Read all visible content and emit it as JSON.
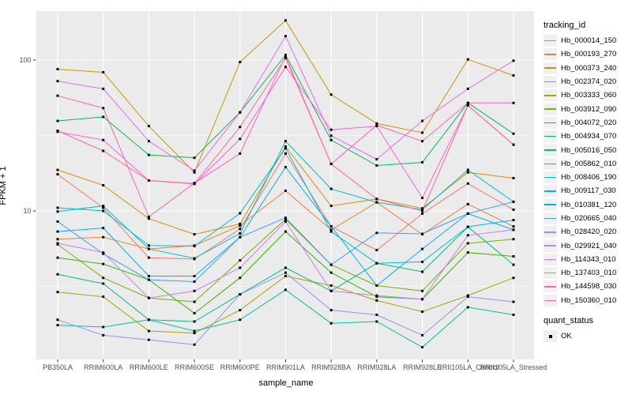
{
  "figure": {
    "background": "#FFFFFF",
    "panel_background": "#EBEBEB",
    "gridline_color": "#FFFFFF",
    "tick_color": "#333333",
    "tick_label_color": "#4D4D4D",
    "point_color": "#000000"
  },
  "chart_data": {
    "type": "line",
    "title": "",
    "xlabel": "sample_name",
    "ylabel": "FPKM + 1",
    "y_scale": "log10",
    "grid": true,
    "legend_position": "right",
    "ylim": [
      1.04,
      209
    ],
    "y_tick_labels": [
      "100",
      "10"
    ],
    "y_tick_values": [
      100,
      10
    ],
    "y_minor_values": [
      31.62,
      3.162
    ],
    "point_shape": "square",
    "categories": [
      "PB350LA",
      "RRIM600LA",
      "RRIM600LE",
      "RRIM600SE",
      "RRIM600PE",
      "RRIM901LA",
      "RRIM928BA",
      "RRIM928LA",
      "RRIM928LE",
      "RRII105LA_Control",
      "RRII105LA_Stressed"
    ],
    "series": [
      {
        "name": "Hb_000014_150",
        "color": "#F8766D",
        "values": [
          17.5,
          10.5,
          4.9,
          4.8,
          7.6,
          24,
          7.9,
          5.5,
          9.6,
          15.2,
          10.2
        ]
      },
      {
        "name": "Hb_000193_270",
        "color": "#EA8331",
        "values": [
          6.5,
          6.7,
          5.6,
          5.9,
          8.0,
          13.6,
          7.5,
          11.4,
          7.0,
          11.1,
          7.9
        ]
      },
      {
        "name": "Hb_000373_240",
        "color": "#D89000",
        "values": [
          18.7,
          14.8,
          8.9,
          7.0,
          8.2,
          26.7,
          10.8,
          12.0,
          10.4,
          18.0,
          16.5
        ]
      },
      {
        "name": "Hb_002374_020",
        "color": "#C09B00",
        "values": [
          87,
          83,
          36.5,
          18,
          97,
          183,
          59,
          38,
          33,
          101,
          79
        ]
      },
      {
        "name": "Hb_003333_060",
        "color": "#A3A500",
        "values": [
          2.9,
          2.7,
          1.6,
          1.55,
          2.2,
          3.7,
          3.2,
          2.55,
          2.15,
          2.75,
          3.6
        ]
      },
      {
        "name": "Hb_003912_090",
        "color": "#7CAE00",
        "values": [
          6.0,
          3.6,
          2.65,
          2.5,
          4.7,
          8.8,
          4.4,
          3.2,
          2.95,
          6.1,
          6.5
        ]
      },
      {
        "name": "Hb_004072_020",
        "color": "#39B600",
        "values": [
          4.9,
          4.45,
          3.5,
          2.1,
          3.6,
          7.3,
          3.9,
          2.7,
          2.6,
          5.3,
          5.0
        ]
      },
      {
        "name": "Hb_004934_070",
        "color": "#00BB4E",
        "values": [
          39.5,
          42,
          23.5,
          22.5,
          45,
          108,
          29.5,
          20,
          21,
          52,
          32.5
        ]
      },
      {
        "name": "Hb_005016_050",
        "color": "#00BF7D",
        "values": [
          3.8,
          3.3,
          1.9,
          1.85,
          2.8,
          4.2,
          2.95,
          4.5,
          3.95,
          7.85,
          4.4
        ]
      },
      {
        "name": "Hb_005862_010",
        "color": "#00C1A3",
        "values": [
          1.75,
          1.7,
          1.9,
          1.6,
          1.9,
          3.0,
          1.8,
          1.85,
          1.25,
          2.3,
          2.05
        ]
      },
      {
        "name": "Hb_008406_190",
        "color": "#00BFC4",
        "values": [
          9.9,
          10.8,
          5.6,
          4.85,
          7.1,
          29,
          14,
          11.4,
          10.2,
          18.7,
          11.5
        ]
      },
      {
        "name": "Hb_009117_030",
        "color": "#00BAE0",
        "values": [
          10.5,
          10.0,
          5.9,
          5.85,
          9.65,
          26,
          7.3,
          4.5,
          4.6,
          7.85,
          8.7
        ]
      },
      {
        "name": "Hb_010381_120",
        "color": "#00B0F6",
        "values": [
          7.3,
          7.7,
          3.7,
          3.7,
          6.7,
          19.5,
          7.9,
          3.2,
          5.6,
          9.6,
          7.5
        ]
      },
      {
        "name": "Hb_020665_040",
        "color": "#35A2FF",
        "values": [
          8.5,
          5.2,
          3.5,
          3.4,
          6.7,
          9.0,
          4.4,
          7.15,
          7.05,
          9.6,
          11.5
        ]
      },
      {
        "name": "Hb_028420_020",
        "color": "#9590FF",
        "values": [
          1.9,
          1.5,
          1.4,
          1.3,
          2.8,
          3.9,
          2.2,
          2.05,
          1.5,
          2.7,
          2.5
        ]
      },
      {
        "name": "Hb_029921_040",
        "color": "#C77CFF",
        "values": [
          6.1,
          5.3,
          2.65,
          2.95,
          4.2,
          8.5,
          2.95,
          2.75,
          2.6,
          6.9,
          7.5
        ]
      },
      {
        "name": "Hb_114343_010",
        "color": "#E76BF3",
        "values": [
          72.5,
          64.5,
          29,
          18.5,
          45,
          144,
          31.5,
          22,
          39.5,
          64.5,
          99
        ]
      },
      {
        "name": "Hb_137403_010",
        "color": "#FA62DB",
        "values": [
          33.5,
          29.5,
          15.9,
          15.1,
          30,
          90,
          34.5,
          36.5,
          12.2,
          50,
          27.5
        ]
      },
      {
        "name": "Hb_144598_030",
        "color": "#FF62BC",
        "values": [
          58,
          48,
          9.15,
          15.3,
          24,
          106,
          20.5,
          37,
          29,
          52,
          52
        ]
      },
      {
        "name": "Hb_150360_010",
        "color": "#FF6A98",
        "values": [
          34,
          25,
          15.9,
          15.2,
          36,
          103,
          20.5,
          12,
          10,
          50,
          27.5
        ]
      }
    ],
    "legend": {
      "tracking_title": "tracking_id",
      "quant_title": "quant_status",
      "quant_items": [
        {
          "label": "OK"
        }
      ]
    }
  }
}
